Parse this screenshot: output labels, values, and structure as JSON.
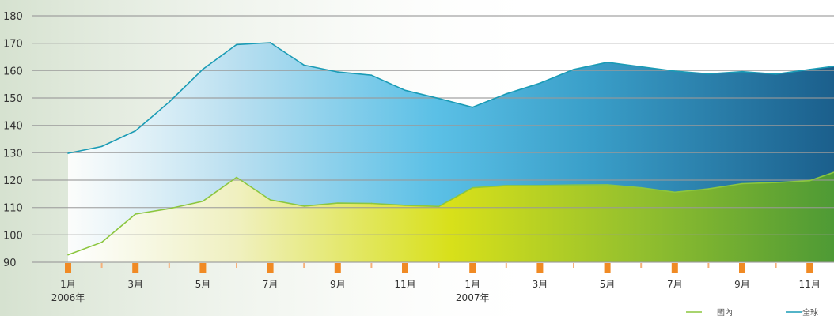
{
  "chart_data": {
    "type": "area",
    "x_tick_labels": [
      "1月",
      "",
      "3月",
      "",
      "5月",
      "",
      "7月",
      "",
      "9月",
      "",
      "11月",
      "",
      "1月",
      "",
      "3月",
      "",
      "5月",
      "",
      "7月",
      "",
      "9月",
      "",
      "11月"
    ],
    "year_labels": [
      {
        "index": 0,
        "label": "2006年"
      },
      {
        "index": 12,
        "label": "2007年"
      }
    ],
    "y_ticks": [
      90,
      100,
      110,
      120,
      130,
      140,
      150,
      160,
      170,
      180
    ],
    "ylim": [
      90,
      180
    ],
    "grid": true,
    "legend_position": "bottom-right",
    "series": [
      {
        "name": "全球",
        "color": "#1a9bb5",
        "values": [
          129.8,
          132.3,
          138,
          148.5,
          160.5,
          169.5,
          170.2,
          162,
          159.5,
          158.3,
          152.8,
          149.8,
          146.6,
          151.5,
          155.4,
          160.4,
          163,
          161.4,
          159.8,
          158.8,
          159.6,
          158.7,
          160.4,
          162
        ]
      },
      {
        "name": "國內",
        "color": "#8cc63f",
        "values": [
          92.7,
          97.3,
          107.6,
          109.6,
          112.3,
          121,
          112.8,
          110.5,
          111.6,
          111.5,
          110.8,
          110.4,
          117.2,
          118,
          118,
          118.2,
          118.3,
          117.2,
          115.6,
          116.8,
          118.7,
          119.1,
          119.8,
          124
        ]
      }
    ]
  }
}
